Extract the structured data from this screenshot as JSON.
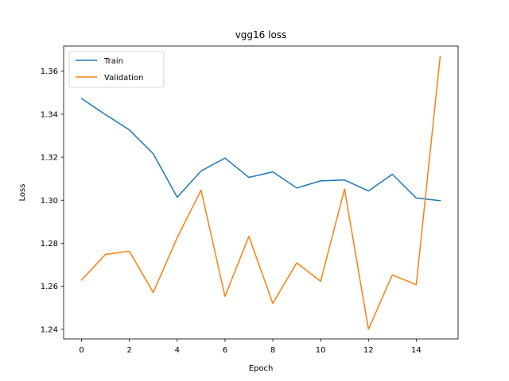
{
  "chart_data": {
    "type": "line",
    "title": "vgg16 loss",
    "xlabel": "Epoch",
    "ylabel": "Loss",
    "x": [
      0,
      1,
      2,
      3,
      4,
      5,
      6,
      7,
      8,
      9,
      10,
      11,
      12,
      13,
      14,
      15
    ],
    "xlim": [
      -0.75,
      15.75
    ],
    "ylim": [
      1.2355,
      1.3717
    ],
    "xticks": [
      0,
      2,
      4,
      6,
      8,
      10,
      12,
      14
    ],
    "xtick_labels": [
      "0",
      "2",
      "4",
      "6",
      "8",
      "10",
      "12",
      "14"
    ],
    "yticks": [
      1.24,
      1.26,
      1.28,
      1.3,
      1.32,
      1.34,
      1.36
    ],
    "ytick_labels": [
      "1.24",
      "1.26",
      "1.28",
      "1.30",
      "1.32",
      "1.34",
      "1.36"
    ],
    "grid": false,
    "legend_position": "upper-left",
    "series": [
      {
        "name": "Train",
        "color": "#1f77b4",
        "values": [
          1.3473,
          1.3398,
          1.3327,
          1.3216,
          1.3014,
          1.3136,
          1.3196,
          1.3106,
          1.3132,
          1.3057,
          1.309,
          1.3094,
          1.3043,
          1.3121,
          1.301,
          1.2998
        ]
      },
      {
        "name": "Validation",
        "color": "#ff7f0e",
        "values": [
          1.2629,
          1.2748,
          1.2763,
          1.2571,
          1.2826,
          1.3047,
          1.2553,
          1.2832,
          1.252,
          1.2709,
          1.2623,
          1.3052,
          1.24,
          1.2653,
          1.2607,
          1.3668
        ]
      }
    ]
  }
}
